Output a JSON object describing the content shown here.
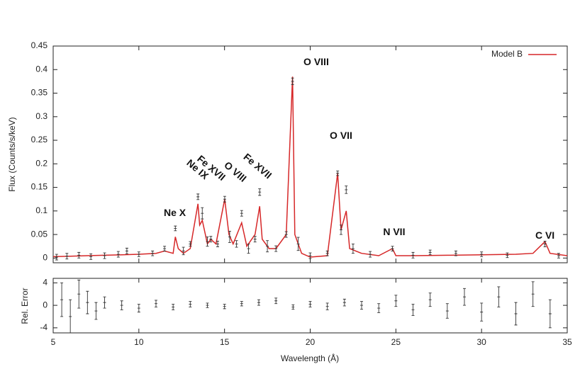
{
  "chart_data": [
    {
      "type": "errorbar-line",
      "ylabel": "Flux (Counts/s/keV)",
      "xlim": [
        5,
        35
      ],
      "xticks": [
        5,
        10,
        15,
        20,
        25,
        30,
        35
      ],
      "ylim": [
        -0.01,
        0.45
      ],
      "yticks": [
        0,
        0.05,
        0.1,
        0.15,
        0.2,
        0.25,
        0.3,
        0.35,
        0.4,
        0.45
      ],
      "legend": "top-right",
      "series": [
        {
          "name": "Model B",
          "color": "#d62728",
          "x": [
            5,
            6,
            7,
            8,
            9,
            10,
            11,
            11.5,
            12,
            12.13,
            12.3,
            12.6,
            13,
            13.45,
            13.55,
            13.7,
            14,
            14.2,
            14.5,
            15.01,
            15.26,
            15.5,
            16.0,
            16.3,
            16.78,
            17.05,
            17.2,
            17.6,
            18.0,
            18.6,
            18.97,
            19.1,
            19.5,
            20,
            21,
            21.6,
            21.8,
            22.1,
            22.3,
            23,
            24,
            24.8,
            25,
            26,
            28,
            30,
            32,
            33,
            33.7,
            34,
            35
          ],
          "values": [
            0.003,
            0.004,
            0.005,
            0.006,
            0.007,
            0.008,
            0.01,
            0.015,
            0.01,
            0.045,
            0.02,
            0.01,
            0.02,
            0.115,
            0.07,
            0.08,
            0.03,
            0.04,
            0.03,
            0.125,
            0.05,
            0.03,
            0.075,
            0.025,
            0.05,
            0.11,
            0.04,
            0.02,
            0.02,
            0.05,
            0.385,
            0.05,
            0.01,
            0.002,
            0.005,
            0.18,
            0.06,
            0.1,
            0.02,
            0.01,
            0.005,
            0.02,
            0.005,
            0.005,
            0.006,
            0.007,
            0.008,
            0.01,
            0.035,
            0.01,
            0.005
          ]
        },
        {
          "color": "#333333",
          "x": [
            5.2,
            5.8,
            6.5,
            7.2,
            8,
            8.8,
            9.3,
            10,
            10.8,
            11.5,
            12.13,
            12.6,
            13.0,
            13.45,
            13.7,
            14.0,
            14.2,
            14.6,
            15.01,
            15.3,
            15.7,
            16.0,
            16.4,
            16.78,
            17.05,
            17.5,
            18.0,
            18.6,
            18.97,
            19.3,
            20,
            21,
            21.6,
            21.8,
            22.1,
            22.5,
            23.5,
            24.8,
            26,
            27,
            28.5,
            30,
            31.5,
            33.7,
            34.5
          ],
          "values": [
            0.002,
            0.004,
            0.006,
            0.003,
            0.005,
            0.008,
            0.015,
            0.008,
            0.01,
            0.02,
            0.063,
            0.015,
            0.03,
            0.13,
            0.095,
            0.035,
            0.04,
            0.03,
            0.125,
            0.045,
            0.03,
            0.095,
            0.02,
            0.04,
            0.14,
            0.025,
            0.02,
            0.05,
            0.375,
            0.03,
            0.005,
            0.01,
            0.18,
            0.06,
            0.145,
            0.02,
            0.008,
            0.02,
            0.006,
            0.012,
            0.01,
            0.008,
            0.006,
            0.03,
            0.005
          ],
          "errors": [
            0.006,
            0.006,
            0.006,
            0.006,
            0.006,
            0.006,
            0.006,
            0.005,
            0.005,
            0.005,
            0.005,
            0.008,
            0.005,
            0.006,
            0.012,
            0.01,
            0.006,
            0.006,
            0.006,
            0.012,
            0.007,
            0.006,
            0.01,
            0.006,
            0.007,
            0.012,
            0.006,
            0.006,
            0.007,
            0.014,
            0.006,
            0.005,
            0.005,
            0.01,
            0.008,
            0.01,
            0.006,
            0.005,
            0.006,
            0.005,
            0.005,
            0.005,
            0.005,
            0.006,
            0.005
          ]
        }
      ],
      "annotations": [
        {
          "text": "Ne X",
          "x": 12.1,
          "y": 0.095,
          "rotation": 0
        },
        {
          "text": "Ne IX",
          "x": 13.4,
          "y": 0.187,
          "rotation": 40
        },
        {
          "text": "Fe XVII",
          "x": 14.2,
          "y": 0.19,
          "rotation": 40
        },
        {
          "text": "O VIII",
          "x": 15.6,
          "y": 0.182,
          "rotation": 40
        },
        {
          "text": "Fe XVII",
          "x": 16.9,
          "y": 0.194,
          "rotation": 40
        },
        {
          "text": "O VIII",
          "x": 20.35,
          "y": 0.415,
          "rotation": 0
        },
        {
          "text": "O VII",
          "x": 21.8,
          "y": 0.259,
          "rotation": 0
        },
        {
          "text": "N VII",
          "x": 24.9,
          "y": 0.054,
          "rotation": 0
        },
        {
          "text": "C VI",
          "x": 33.7,
          "y": 0.047,
          "rotation": 0
        }
      ]
    },
    {
      "type": "errorbar",
      "xlabel": "Wavelength (Å)",
      "ylabel": "Rel. Error",
      "xlim": [
        5,
        35
      ],
      "xticks": [
        5,
        10,
        15,
        20,
        25,
        30,
        35
      ],
      "ylim": [
        -4.9,
        4.8
      ],
      "yticks": [
        -4,
        0,
        4
      ],
      "series": [
        {
          "color": "#333333",
          "x": [
            5.5,
            6,
            6.5,
            7,
            7.5,
            8,
            9,
            10,
            11,
            12,
            13,
            14,
            15,
            16,
            17,
            18,
            19,
            20,
            21,
            22,
            23,
            24,
            25,
            26,
            27,
            28,
            29,
            30,
            31,
            32,
            33,
            34
          ],
          "values": [
            1,
            -2,
            2,
            0.5,
            -1,
            0.5,
            0,
            -0.5,
            0.3,
            -0.3,
            0.2,
            0,
            -0.2,
            0.3,
            0.5,
            0.8,
            -0.3,
            0.2,
            -0.2,
            0.5,
            0,
            -0.5,
            0.8,
            -0.8,
            1,
            -1,
            1.5,
            -1.2,
            1.5,
            -1.5,
            2,
            -1.5
          ],
          "errors": [
            3,
            3,
            2.5,
            2,
            1.5,
            1,
            0.8,
            0.7,
            0.6,
            0.5,
            0.5,
            0.4,
            0.4,
            0.4,
            0.5,
            0.5,
            0.4,
            0.5,
            0.6,
            0.6,
            0.7,
            0.8,
            1,
            1,
            1.2,
            1.3,
            1.5,
            1.6,
            1.8,
            2,
            2.2,
            2.5
          ]
        }
      ]
    }
  ]
}
